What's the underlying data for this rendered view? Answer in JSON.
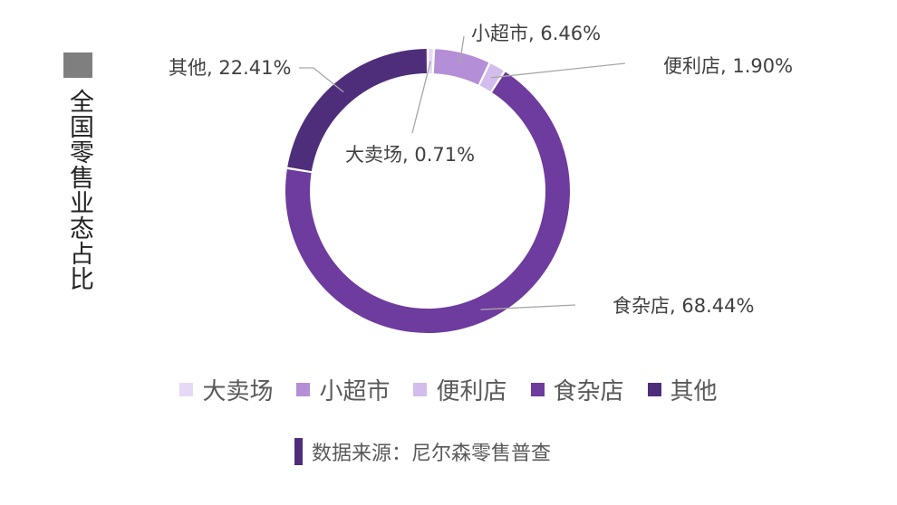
{
  "title": "全国零售业态占比",
  "chart_data": {
    "type": "pie",
    "title": "全国零售业态占比",
    "categories": [
      "大卖场",
      "小超市",
      "便利店",
      "食杂店",
      "其他"
    ],
    "values": [
      0.71,
      6.46,
      1.9,
      68.44,
      22.41
    ],
    "colors": [
      "#e6d9f5",
      "#b48ed6",
      "#d3bdec",
      "#6e3b9e",
      "#4e2e7a"
    ],
    "data_labels": [
      "大卖场, 0.71%",
      "小超市, 6.46%",
      "便利店, 1.90%",
      "食杂店, 68.44%",
      "其他, 22.41%"
    ],
    "legend": {
      "position": "bottom",
      "labels": [
        "大卖场",
        "小超市",
        "便利店",
        "食杂店",
        "其他"
      ]
    }
  },
  "source": {
    "text": "数据来源：尼尔森零售普查",
    "color": "#4e2e7a"
  }
}
